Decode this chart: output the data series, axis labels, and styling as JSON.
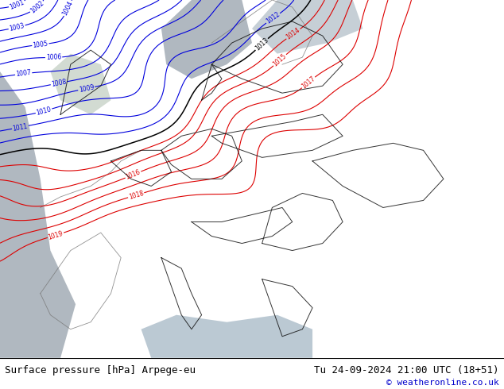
{
  "title_left": "Surface pressure [hPa] Arpege-eu",
  "title_right": "Tu 24-09-2024 21:00 UTC (18+51)",
  "credit": "© weatheronline.co.uk",
  "land_color": "#b8e090",
  "sea_color": "#c8c8c8",
  "blue_contour_color": "#0000dd",
  "red_contour_color": "#dd0000",
  "black_contour_color": "#000000",
  "gray_border_color": "#888888",
  "bottom_bar_color": "#ffffff",
  "footer_fontsize": 9,
  "credit_fontsize": 8
}
